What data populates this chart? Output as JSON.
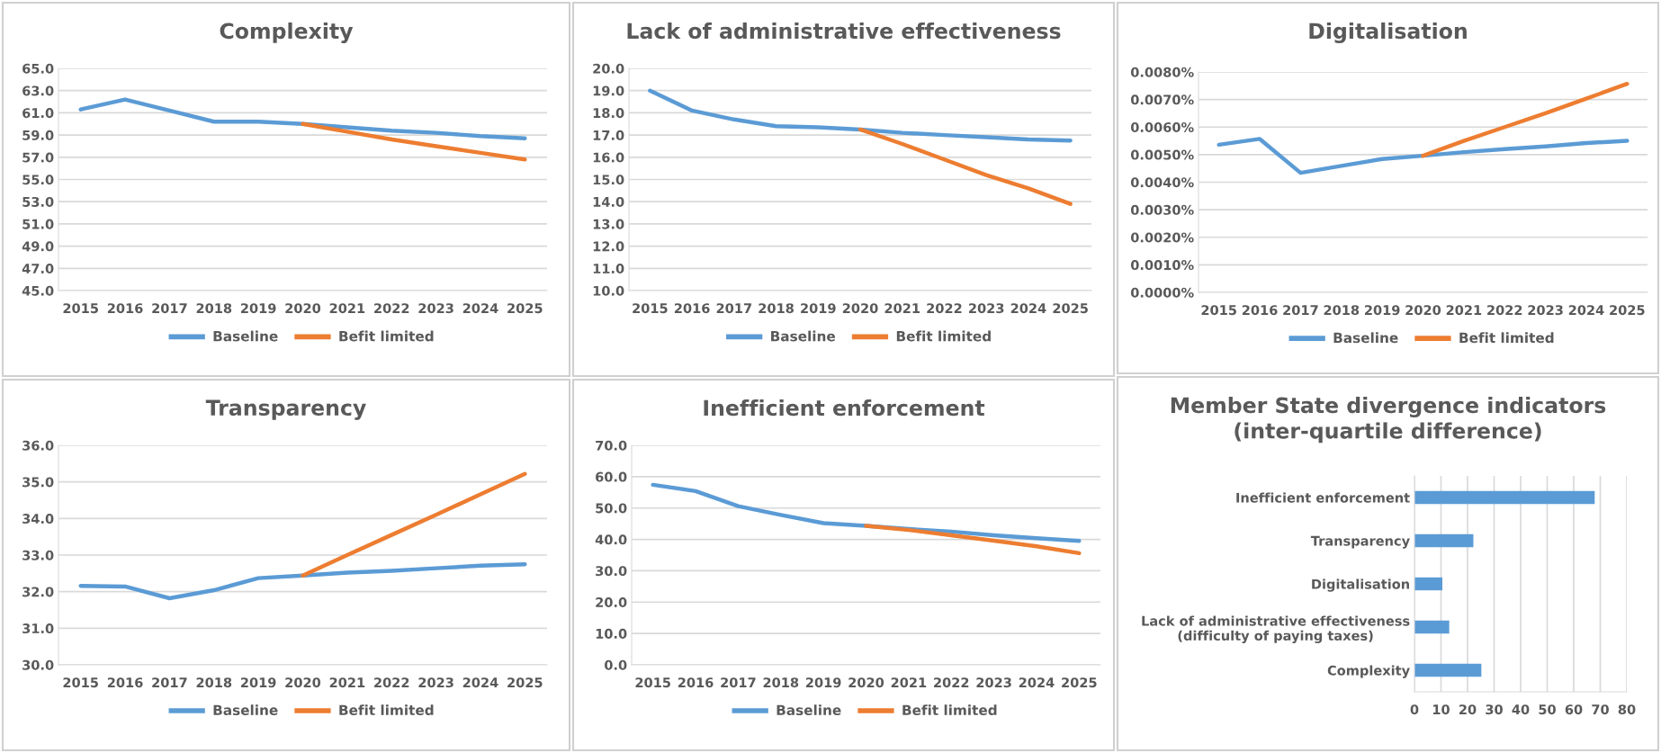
{
  "chart_data": [
    {
      "type": "line",
      "title": "Complexity",
      "categories": [
        "2015",
        "2016",
        "2017",
        "2018",
        "2019",
        "2020",
        "2021",
        "2022",
        "2023",
        "2024",
        "2025"
      ],
      "series": [
        {
          "name": "Baseline",
          "color": "#5b9bd5",
          "values": [
            61.3,
            62.2,
            61.2,
            60.2,
            60.2,
            60.0,
            59.7,
            59.4,
            59.2,
            58.9,
            58.7
          ]
        },
        {
          "name": "Befit limited",
          "color": "#ed7d31",
          "values": [
            null,
            null,
            null,
            null,
            null,
            60.0,
            59.3,
            58.6,
            58.0,
            57.4,
            56.8
          ]
        }
      ],
      "ylim": [
        45.0,
        65.0
      ],
      "yticks": [
        {
          "value": 45,
          "label": "45.0"
        },
        {
          "value": 47,
          "label": "47.0"
        },
        {
          "value": 49,
          "label": "49.0"
        },
        {
          "value": 51,
          "label": "51.0"
        },
        {
          "value": 53,
          "label": "53.0"
        },
        {
          "value": 55,
          "label": "55.0"
        },
        {
          "value": 57,
          "label": "57.0"
        },
        {
          "value": 59,
          "label": "59.0"
        },
        {
          "value": 61,
          "label": "61.0"
        },
        {
          "value": 63,
          "label": "63.0"
        },
        {
          "value": 65,
          "label": "65.0"
        }
      ],
      "grid": "y",
      "legend": "bottom",
      "marker": "none",
      "line_style": "solid"
    },
    {
      "type": "line",
      "title": "Lack of administrative effectiveness",
      "categories": [
        "2015",
        "2016",
        "2017",
        "2018",
        "2019",
        "2020",
        "2021",
        "2022",
        "2023",
        "2024",
        "2025"
      ],
      "series": [
        {
          "name": "Baseline",
          "color": "#5b9bd5",
          "values": [
            19.0,
            18.1,
            17.7,
            17.4,
            17.35,
            17.25,
            17.1,
            17.0,
            16.9,
            16.8,
            16.75
          ]
        },
        {
          "name": "Befit limited",
          "color": "#ed7d31",
          "values": [
            null,
            null,
            null,
            null,
            null,
            17.25,
            16.6,
            15.9,
            15.2,
            14.6,
            13.9
          ]
        }
      ],
      "ylim": [
        10.0,
        20.0
      ],
      "yticks": [
        {
          "value": 10,
          "label": "10.0"
        },
        {
          "value": 11,
          "label": "11.0"
        },
        {
          "value": 12,
          "label": "12.0"
        },
        {
          "value": 13,
          "label": "13.0"
        },
        {
          "value": 14,
          "label": "14.0"
        },
        {
          "value": 15,
          "label": "15.0"
        },
        {
          "value": 16,
          "label": "16.0"
        },
        {
          "value": 17,
          "label": "17.0"
        },
        {
          "value": 18,
          "label": "18.0"
        },
        {
          "value": 19,
          "label": "19.0"
        },
        {
          "value": 20,
          "label": "20.0"
        }
      ],
      "grid": "y",
      "legend": "bottom",
      "marker": "none",
      "line_style": "solid"
    },
    {
      "type": "line",
      "title": "Digitalisation",
      "categories": [
        "2015",
        "2016",
        "2017",
        "2018",
        "2019",
        "2020",
        "2021",
        "2022",
        "2023",
        "2024",
        "2025"
      ],
      "series": [
        {
          "name": "Baseline",
          "color": "#5b9bd5",
          "values": [
            0.00536,
            0.00557,
            0.00434,
            0.00459,
            0.00484,
            0.00496,
            0.00509,
            0.0052,
            0.0053,
            0.00542,
            0.0055
          ]
        },
        {
          "name": "Befit limited",
          "color": "#ed7d31",
          "values": [
            null,
            null,
            null,
            null,
            null,
            0.00496,
            0.0055,
            0.006,
            0.0065,
            0.00703,
            0.00757
          ]
        }
      ],
      "ylim": [
        0.0,
        0.008
      ],
      "yticks": [
        {
          "value": 0.0,
          "label": "0.0000%"
        },
        {
          "value": 0.001,
          "label": "0.0010%"
        },
        {
          "value": 0.002,
          "label": "0.0020%"
        },
        {
          "value": 0.003,
          "label": "0.0030%"
        },
        {
          "value": 0.004,
          "label": "0.0040%"
        },
        {
          "value": 0.005,
          "label": "0.0050%"
        },
        {
          "value": 0.006,
          "label": "0.0060%"
        },
        {
          "value": 0.007,
          "label": "0.0070%"
        },
        {
          "value": 0.008,
          "label": "0.0080%"
        }
      ],
      "grid": "y",
      "legend": "bottom",
      "marker": "none",
      "line_style": "solid"
    },
    {
      "type": "line",
      "title": "Transparency",
      "categories": [
        "2015",
        "2016",
        "2017",
        "2018",
        "2019",
        "2020",
        "2021",
        "2022",
        "2023",
        "2024",
        "2025"
      ],
      "series": [
        {
          "name": "Baseline",
          "color": "#5b9bd5",
          "values": [
            32.16,
            32.14,
            31.82,
            32.04,
            32.37,
            32.44,
            32.52,
            32.57,
            32.64,
            32.71,
            32.75
          ]
        },
        {
          "name": "Befit limited",
          "color": "#ed7d31",
          "values": [
            null,
            null,
            null,
            null,
            null,
            32.44,
            33.0,
            33.55,
            34.1,
            34.66,
            35.22
          ]
        }
      ],
      "ylim": [
        30.0,
        36.0
      ],
      "yticks": [
        {
          "value": 30,
          "label": "30.0"
        },
        {
          "value": 31,
          "label": "31.0"
        },
        {
          "value": 32,
          "label": "32.0"
        },
        {
          "value": 33,
          "label": "33.0"
        },
        {
          "value": 34,
          "label": "34.0"
        },
        {
          "value": 35,
          "label": "35.0"
        },
        {
          "value": 36,
          "label": "36.0"
        }
      ],
      "grid": "y",
      "legend": "bottom",
      "marker": "none",
      "line_style": "solid"
    },
    {
      "type": "line",
      "title": "Inefficient enforcement",
      "categories": [
        "2015",
        "2016",
        "2017",
        "2018",
        "2019",
        "2020",
        "2021",
        "2022",
        "2023",
        "2024",
        "2025"
      ],
      "series": [
        {
          "name": "Baseline",
          "color": "#5b9bd5",
          "values": [
            57.4,
            55.4,
            50.6,
            47.8,
            45.2,
            44.3,
            43.3,
            42.5,
            41.3,
            40.4,
            39.5
          ]
        },
        {
          "name": "Befit limited",
          "color": "#ed7d31",
          "values": [
            null,
            null,
            null,
            null,
            null,
            44.3,
            43.0,
            41.3,
            39.6,
            37.8,
            35.6
          ]
        }
      ],
      "ylim": [
        0.0,
        70.0
      ],
      "yticks": [
        {
          "value": 0,
          "label": "0.0"
        },
        {
          "value": 10,
          "label": "10.0"
        },
        {
          "value": 20,
          "label": "20.0"
        },
        {
          "value": 30,
          "label": "30.0"
        },
        {
          "value": 40,
          "label": "40.0"
        },
        {
          "value": 50,
          "label": "50.0"
        },
        {
          "value": 60,
          "label": "60.0"
        },
        {
          "value": 70,
          "label": "70.0"
        }
      ],
      "grid": "y",
      "legend": "bottom",
      "marker": "none",
      "line_style": "solid"
    },
    {
      "type": "bar",
      "orientation": "horizontal",
      "title": "Member State divergence indicators\n(inter-quartile difference)",
      "categories": [
        "Inefficient enforcement",
        "Transparency",
        "Digitalisation",
        "Lack of administrative effectiveness\n(difficulty of paying taxes)",
        "Complexity"
      ],
      "values": [
        67.9,
        22.2,
        10.5,
        13.1,
        25.2
      ],
      "color": "#5b9bd5",
      "xlim": [
        0,
        80
      ],
      "xticks": [
        0,
        10,
        20,
        30,
        40,
        50,
        60,
        70,
        80
      ],
      "grid": "x"
    }
  ]
}
